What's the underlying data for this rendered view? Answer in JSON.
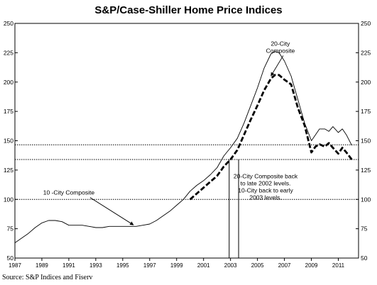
{
  "chart_data": {
    "type": "line",
    "title": "S&P/Case-Shiller Home Price Indices",
    "xlabel": "",
    "ylabel": "",
    "xlim": [
      1987,
      2012.5
    ],
    "ylim": [
      50,
      250
    ],
    "x_ticks": [
      "1987",
      "1989",
      "1991",
      "1993",
      "1995",
      "1997",
      "1999",
      "2001",
      "2003",
      "2005",
      "2007",
      "2009",
      "2011"
    ],
    "y_ticks": [
      "50",
      "75",
      "100",
      "125",
      "150",
      "175",
      "200",
      "225",
      "250"
    ],
    "y_ticks_right": [
      "50",
      "75",
      "100",
      "125",
      "150",
      "175",
      "200",
      "225",
      "250"
    ],
    "reference_lines": [
      100,
      134,
      146.5
    ],
    "vertical_markers": [
      2002.9,
      2003.6
    ],
    "series": [
      {
        "name": "10-City Composite",
        "style": "thin-solid",
        "color": "#000000",
        "x": [
          1987.0,
          1987.5,
          1988.0,
          1988.5,
          1989.0,
          1989.5,
          1990.0,
          1990.5,
          1991.0,
          1991.5,
          1992.0,
          1992.5,
          1993.0,
          1993.5,
          1994.0,
          1994.5,
          1995.0,
          1995.5,
          1996.0,
          1996.5,
          1997.0,
          1997.5,
          1998.0,
          1998.5,
          1999.0,
          1999.5,
          2000.0,
          2000.5,
          2001.0,
          2001.5,
          2002.0,
          2002.5,
          2003.0,
          2003.5,
          2004.0,
          2004.5,
          2005.0,
          2005.5,
          2006.0,
          2006.3,
          2006.6,
          2007.0,
          2007.5,
          2008.0,
          2008.5,
          2009.0,
          2009.3,
          2009.6,
          2010.0,
          2010.3,
          2010.6,
          2011.0,
          2011.3,
          2011.6,
          2012.0
        ],
        "values": [
          63,
          67,
          71,
          76,
          80,
          82,
          82,
          81,
          78,
          78,
          78,
          77,
          76,
          76,
          77,
          77,
          77,
          77,
          77,
          78,
          79,
          82,
          86,
          90,
          95,
          100,
          107,
          112,
          116,
          121,
          127,
          137,
          144,
          152,
          165,
          180,
          195,
          212,
          224,
          226,
          225,
          218,
          205,
          185,
          165,
          150,
          155,
          160,
          160,
          158,
          162,
          157,
          160,
          155,
          146
        ]
      },
      {
        "name": "20-City Composite",
        "style": "thick-dashed",
        "color": "#000000",
        "x": [
          2000.0,
          2000.5,
          2001.0,
          2001.5,
          2002.0,
          2002.5,
          2003.0,
          2003.5,
          2004.0,
          2004.5,
          2005.0,
          2005.5,
          2006.0,
          2006.3,
          2006.6,
          2007.0,
          2007.5,
          2008.0,
          2008.5,
          2009.0,
          2009.3,
          2009.6,
          2010.0,
          2010.3,
          2010.6,
          2011.0,
          2011.3,
          2011.6,
          2012.0
        ],
        "values": [
          100,
          105,
          110,
          115,
          120,
          128,
          134,
          142,
          155,
          168,
          180,
          193,
          203,
          206,
          206,
          202,
          198,
          178,
          163,
          140,
          145,
          147,
          145,
          148,
          144,
          139,
          144,
          140,
          134
        ]
      }
    ],
    "annotations": [
      {
        "text": "20-City\nComposite",
        "x": 2006.7,
        "y": 231,
        "arrow_to": [
          2006.0,
          204
        ]
      },
      {
        "text": "10 -City Composite",
        "x": 1991.0,
        "y": 104,
        "arrow_to": [
          1995.8,
          77
        ]
      },
      {
        "text": "20-City Composite back\nto late 2002 levels.\n10-City back to early\n2003 levels.",
        "x": 2005.6,
        "y": 118,
        "arrow_to": null
      }
    ],
    "grid": false,
    "legend": "none"
  },
  "source": "Source: S&P Indices and Fiserv"
}
